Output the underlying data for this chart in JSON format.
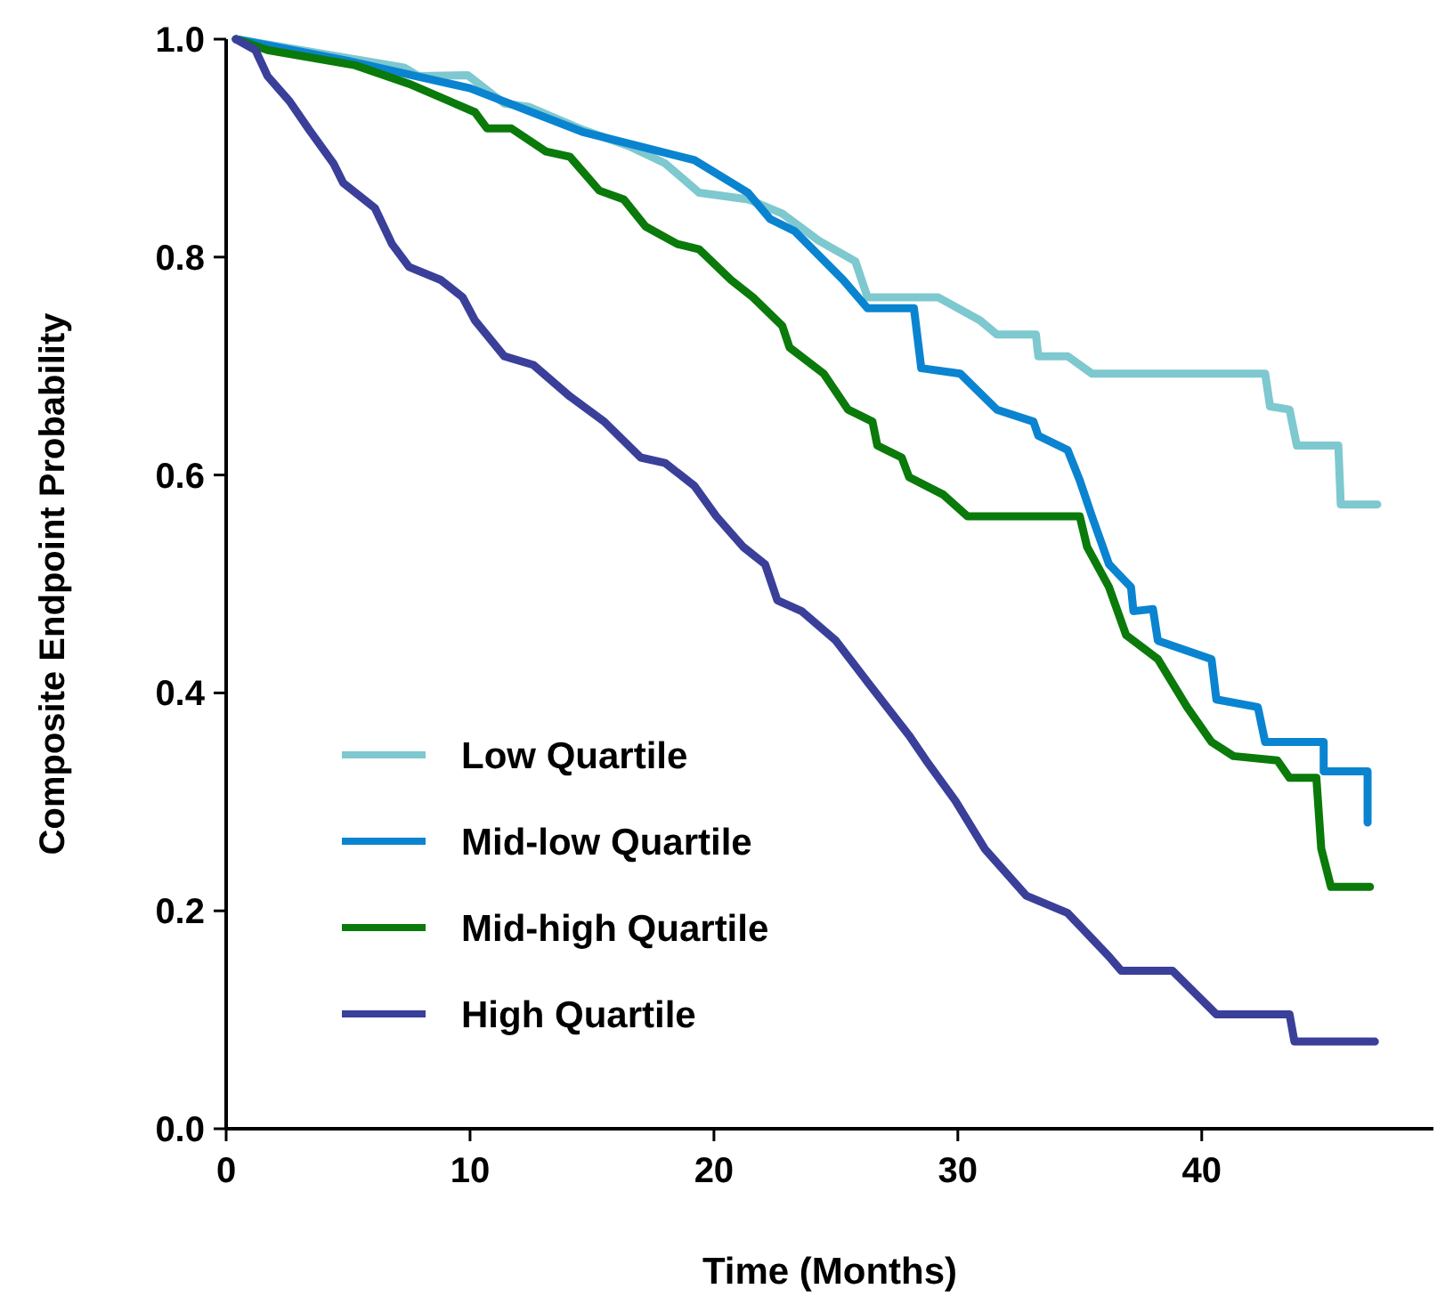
{
  "chart_data": {
    "type": "line",
    "xlabel": "Time (Months)",
    "ylabel": "Composite Endpoint Probability",
    "xlim": [
      0,
      49.5
    ],
    "ylim": [
      0,
      1
    ],
    "xticks": [
      0,
      10,
      20,
      30,
      40
    ],
    "yticks": [
      {
        "value": 0,
        "label": "0.0"
      },
      {
        "value": 0.2,
        "label": "0.2"
      },
      {
        "value": 0.4,
        "label": "0.4"
      },
      {
        "value": 0.6,
        "label": "0.6"
      },
      {
        "value": 0.8,
        "label": "0.8"
      },
      {
        "value": 1,
        "label": "1.0"
      }
    ],
    "grid": false,
    "legend": "bottom left",
    "marker": "none",
    "line_style": "solid",
    "series": [
      {
        "name": "Low Quartile",
        "color": "#7ec8d0",
        "x": [
          0.4,
          7.3,
          7.9,
          9.9,
          11.4,
          12.4,
          14.6,
          16.5,
          18.0,
          19.4,
          21.4,
          22.8,
          24.3,
          25.8,
          26.3,
          28.7,
          29.2,
          30.9,
          31.6,
          33.2,
          33.3,
          34.5,
          35.5,
          42.6,
          42.8,
          43.6,
          43.9,
          45.6,
          45.7,
          47.2
        ],
        "values": [
          1.0,
          0.974,
          0.966,
          0.967,
          0.941,
          0.938,
          0.917,
          0.902,
          0.886,
          0.859,
          0.853,
          0.84,
          0.815,
          0.796,
          0.763,
          0.763,
          0.763,
          0.742,
          0.729,
          0.729,
          0.709,
          0.709,
          0.693,
          0.693,
          0.663,
          0.66,
          0.627,
          0.627,
          0.573,
          0.573
        ]
      },
      {
        "name": "Mid-low Quartile",
        "color": "#0a84d0",
        "x": [
          0.4,
          5.0,
          10.0,
          14.6,
          19.2,
          21.4,
          22.3,
          23.3,
          25.3,
          26.3,
          28.2,
          28.5,
          30.1,
          31.6,
          33.1,
          33.3,
          34.5,
          35.0,
          35.5,
          36.2,
          37.1,
          37.2,
          38.0,
          38.2,
          40.4,
          40.6,
          42.3,
          42.6,
          45.0,
          45.0,
          46.8,
          46.8
        ],
        "values": [
          1.0,
          0.98,
          0.955,
          0.915,
          0.889,
          0.859,
          0.835,
          0.824,
          0.779,
          0.753,
          0.753,
          0.698,
          0.693,
          0.66,
          0.649,
          0.636,
          0.623,
          0.595,
          0.562,
          0.518,
          0.497,
          0.475,
          0.477,
          0.448,
          0.431,
          0.394,
          0.387,
          0.355,
          0.355,
          0.328,
          0.328,
          0.281
        ]
      },
      {
        "name": "Mid-high Quartile",
        "color": "#0a7a0a",
        "x": [
          0.4,
          1.7,
          5.3,
          7.5,
          10.2,
          10.7,
          11.7,
          13.1,
          14.1,
          15.3,
          16.3,
          17.2,
          18.5,
          19.4,
          20.7,
          21.6,
          22.8,
          23.1,
          24.5,
          25.5,
          26.5,
          26.7,
          27.7,
          28.0,
          29.4,
          30.4,
          35.0,
          35.3,
          36.2,
          36.9,
          38.2,
          39.4,
          40.4,
          41.3,
          43.1,
          43.6,
          44.7,
          44.9,
          45.3,
          46.9
        ],
        "values": [
          1.0,
          0.99,
          0.976,
          0.959,
          0.933,
          0.918,
          0.918,
          0.897,
          0.892,
          0.861,
          0.853,
          0.828,
          0.812,
          0.807,
          0.779,
          0.763,
          0.737,
          0.717,
          0.693,
          0.66,
          0.649,
          0.627,
          0.616,
          0.598,
          0.582,
          0.562,
          0.562,
          0.534,
          0.497,
          0.453,
          0.431,
          0.387,
          0.355,
          0.342,
          0.338,
          0.322,
          0.322,
          0.257,
          0.222,
          0.222
        ]
      },
      {
        "name": "High Quartile",
        "color": "#3a3f9a",
        "x": [
          0.4,
          1.2,
          1.7,
          2.6,
          3.4,
          4.4,
          4.8,
          6.1,
          6.8,
          7.5,
          8.8,
          9.7,
          10.2,
          11.4,
          12.6,
          14.1,
          15.5,
          17.0,
          18.0,
          19.2,
          20.1,
          21.2,
          22.1,
          22.6,
          23.6,
          25.0,
          26.3,
          28.0,
          28.7,
          29.9,
          31.1,
          32.8,
          34.5,
          36.2,
          36.7,
          38.8,
          40.6,
          43.6,
          43.8,
          47.1
        ],
        "values": [
          1.0,
          0.99,
          0.966,
          0.943,
          0.917,
          0.886,
          0.868,
          0.845,
          0.812,
          0.791,
          0.779,
          0.763,
          0.742,
          0.709,
          0.701,
          0.672,
          0.649,
          0.616,
          0.611,
          0.59,
          0.562,
          0.534,
          0.518,
          0.485,
          0.475,
          0.448,
          0.41,
          0.361,
          0.338,
          0.301,
          0.257,
          0.214,
          0.198,
          0.158,
          0.145,
          0.145,
          0.105,
          0.105,
          0.08,
          0.08
        ]
      }
    ]
  }
}
